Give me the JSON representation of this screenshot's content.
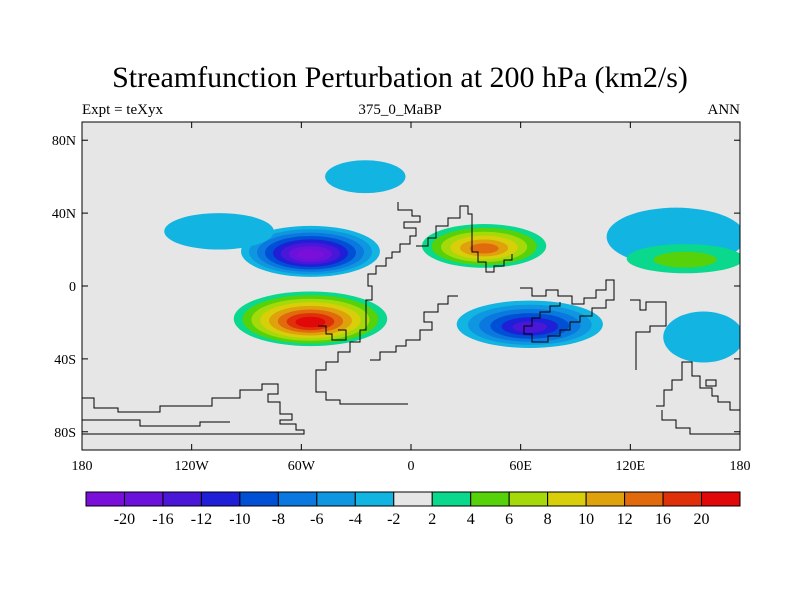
{
  "title": "Streamfunction Perturbation at 200 hPa (km2/s)",
  "subtitle_left": "Expt = teXyx",
  "subtitle_center": "375_0_MaBP",
  "subtitle_right": "ANN",
  "map": {
    "lon_range": [
      -180,
      180
    ],
    "lat_range": [
      -90,
      90
    ],
    "background_color": "#e6e6e6",
    "y_ticks": [
      {
        "value": 80,
        "label": "80N"
      },
      {
        "value": 40,
        "label": "40N"
      },
      {
        "value": 0,
        "label": "0"
      },
      {
        "value": -40,
        "label": "40S"
      },
      {
        "value": -80,
        "label": "80S"
      }
    ],
    "x_ticks": [
      {
        "value": -180,
        "label": "180"
      },
      {
        "value": -120,
        "label": "120W"
      },
      {
        "value": -60,
        "label": "60W"
      },
      {
        "value": 0,
        "label": "0"
      },
      {
        "value": 60,
        "label": "60E"
      },
      {
        "value": 120,
        "label": "120E"
      },
      {
        "value": 180,
        "label": "180"
      }
    ]
  },
  "colorbar": {
    "colors": [
      "#7a0fd9",
      "#6a12dc",
      "#4a17d8",
      "#1f1fd8",
      "#0050d6",
      "#0a78de",
      "#0f96e0",
      "#12b4e2",
      "#e6e6e6",
      "#0ad88c",
      "#55d20a",
      "#a6d90a",
      "#d9ce0a",
      "#e0a20c",
      "#e06a0c",
      "#e0300a",
      "#e00808"
    ],
    "labels": [
      "-20",
      "-16",
      "-12",
      "-10",
      "-8",
      "-6",
      "-4",
      "-2",
      "2",
      "4",
      "6",
      "8",
      "10",
      "12",
      "16",
      "20"
    ]
  },
  "fields": [
    {
      "lon": -55,
      "lat": 19,
      "rx": 38,
      "ry": 14,
      "level": -20,
      "sign": "neg"
    },
    {
      "lon": -55,
      "lat": -18,
      "rx": 42,
      "ry": 15,
      "level": 20,
      "sign": "pos"
    },
    {
      "lon": 40,
      "lat": 22,
      "rx": 34,
      "ry": 12,
      "level": 14,
      "sign": "pos"
    },
    {
      "lon": 65,
      "lat": -21,
      "rx": 40,
      "ry": 13,
      "level": -12,
      "sign": "neg"
    },
    {
      "lon": -25,
      "lat": 60,
      "rx": 22,
      "ry": 9,
      "level": -3,
      "sign": "neg"
    },
    {
      "lon": 145,
      "lat": 27,
      "rx": 38,
      "ry": 16,
      "level": -2,
      "sign": "neg"
    },
    {
      "lon": 160,
      "lat": -28,
      "rx": 22,
      "ry": 14,
      "level": -2,
      "sign": "neg"
    },
    {
      "lon": 150,
      "lat": 15,
      "rx": 32,
      "ry": 8,
      "level": 5,
      "sign": "pos"
    },
    {
      "lon": -105,
      "lat": 30,
      "rx": 30,
      "ry": 10,
      "level": -3,
      "sign": "neg"
    }
  ]
}
